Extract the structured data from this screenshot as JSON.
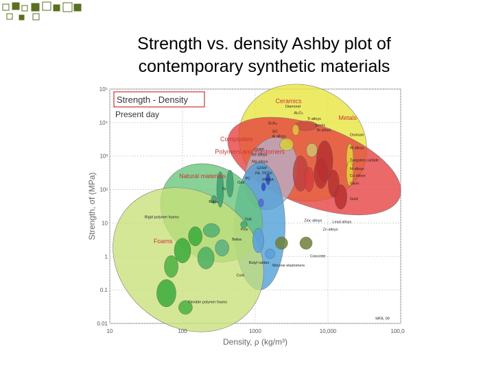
{
  "slide": {
    "title_line1": "Strength vs. density Ashby plot of",
    "title_line2": "contemporary synthetic materials"
  },
  "colors": {
    "deco": "#5a6f22"
  },
  "chart_data": {
    "type": "scatter",
    "title": "Strength - Density",
    "subtitle": "Present day",
    "xlabel": "Density, ρ  (kg/m³)",
    "ylabel": "Strength, σf  (MPa)",
    "xscale": "log",
    "yscale": "log",
    "xlim": [
      10,
      100000
    ],
    "ylim": [
      0.01,
      100000
    ],
    "x_ticks": [
      {
        "value": 10,
        "label": "10"
      },
      {
        "value": 100,
        "label": "100"
      },
      {
        "value": 1000,
        "label": "1000"
      },
      {
        "value": 10000,
        "label": "10,000"
      },
      {
        "value": 100000,
        "label": "100,000"
      }
    ],
    "y_ticks": [
      {
        "value": 0.01,
        "label": "0.01"
      },
      {
        "value": 0.1,
        "label": "0.1"
      },
      {
        "value": 1,
        "label": "1"
      },
      {
        "value": 10,
        "label": "10"
      },
      {
        "value": 100,
        "label": "10²"
      },
      {
        "value": 1000,
        "label": "10³"
      },
      {
        "value": 10000,
        "label": "10⁴"
      },
      {
        "value": 100000,
        "label": "10⁵"
      }
    ],
    "grid": true,
    "families": [
      {
        "name": "Ceramics",
        "color": "#e8e63a",
        "x": 4500,
        "y": 2500,
        "wd": 0.9,
        "hd": 1.7,
        "rot": 25,
        "label_x": 1900,
        "label_y": 38000
      },
      {
        "name": "Metals",
        "color": "#e63f3f",
        "x": 6500,
        "y": 500,
        "wd": 1.25,
        "hd": 1.2,
        "rot": 20,
        "label_x": 14000,
        "label_y": 12000
      },
      {
        "name": "Composites",
        "color": "#b8b0cc",
        "x": 1650,
        "y": 300,
        "wd": 0.35,
        "hd": 1.1,
        "rot": 15,
        "label_x": 330,
        "label_y": 2800
      },
      {
        "name": "Polymers and elastomers",
        "color": "#4b9ed6",
        "x": 1150,
        "y": 8,
        "wd": 0.35,
        "hd": 1.9,
        "rot": 0,
        "label_x": 280,
        "label_y": 1150
      },
      {
        "name": "Natural materials",
        "color": "#66c47a",
        "x": 250,
        "y": 20,
        "wd": 0.75,
        "hd": 1.35,
        "rot": 40,
        "label_x": 90,
        "label_y": 220
      },
      {
        "name": "Foams",
        "color": "#c8e07a",
        "x": 120,
        "y": 0.8,
        "wd": 1.1,
        "hd": 2.0,
        "rot": 38,
        "label_x": 40,
        "label_y": 2.5
      }
    ],
    "annotations": [
      {
        "text": "Diamond",
        "x": 2600,
        "y": 28000
      },
      {
        "text": "Al₂O₃",
        "x": 3400,
        "y": 18000
      },
      {
        "text": "Ti alloys",
        "x": 5200,
        "y": 12000
      },
      {
        "text": "Steels",
        "x": 6600,
        "y": 7600
      },
      {
        "text": "Ni alloys",
        "x": 7000,
        "y": 5500
      },
      {
        "text": "Si₃N₄",
        "x": 1500,
        "y": 8800
      },
      {
        "text": "SiC",
        "x": 1700,
        "y": 5000
      },
      {
        "text": "Al alloys",
        "x": 1700,
        "y": 3600
      },
      {
        "text": "Osmium",
        "x": 20000,
        "y": 4000
      },
      {
        "text": "W alloys",
        "x": 20000,
        "y": 1600
      },
      {
        "text": "CFRP",
        "x": 960,
        "y": 1450
      },
      {
        "text": "Be alloys",
        "x": 900,
        "y": 1000
      },
      {
        "text": "Mg alloys",
        "x": 900,
        "y": 630
      },
      {
        "text": "GFRP",
        "x": 1050,
        "y": 400
      },
      {
        "text": "PA",
        "x": 1000,
        "y": 280
      },
      {
        "text": "PEEK",
        "x": 1250,
        "y": 280
      },
      {
        "text": "PC",
        "x": 730,
        "y": 200
      },
      {
        "text": "PMMA",
        "x": 1250,
        "y": 180
      },
      {
        "text": "Tungsten carbide",
        "x": 20000,
        "y": 700
      },
      {
        "text": "Ni alloys",
        "x": 20000,
        "y": 380
      },
      {
        "text": "Cu alloys",
        "x": 20000,
        "y": 240
      },
      {
        "text": "Silver",
        "x": 20000,
        "y": 140
      },
      {
        "text": "Gold",
        "x": 20000,
        "y": 48
      },
      {
        "text": "Oak",
        "x": 570,
        "y": 150
      },
      {
        "text": "Fir",
        "x": 350,
        "y": 95
      },
      {
        "text": "Balsa",
        "x": 230,
        "y": 40
      },
      {
        "text": "Zinc alloys",
        "x": 4700,
        "y": 11
      },
      {
        "text": "Lead alloys",
        "x": 11500,
        "y": 10
      },
      {
        "text": "Zn alloys",
        "x": 8500,
        "y": 6
      },
      {
        "text": "Rigid polymer foams",
        "x": 30,
        "y": 14
      },
      {
        "text": "Oak",
        "x": 720,
        "y": 12
      },
      {
        "text": "Pine",
        "x": 630,
        "y": 6
      },
      {
        "text": "Balsa",
        "x": 480,
        "y": 3
      },
      {
        "text": "Cork",
        "x": 550,
        "y": 0.25
      },
      {
        "text": "Concrete",
        "x": 5700,
        "y": 0.95
      },
      {
        "text": "Silicone elastomers",
        "x": 1700,
        "y": 0.5
      },
      {
        "text": "Butyl rubber",
        "x": 820,
        "y": 0.6
      },
      {
        "text": "Flexible polymer foams",
        "x": 120,
        "y": 0.04
      },
      {
        "text": "MFA, 09",
        "x": 45000,
        "y": 0.013
      }
    ]
  }
}
